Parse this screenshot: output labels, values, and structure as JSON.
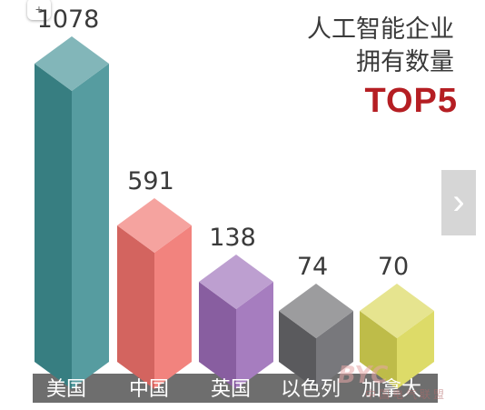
{
  "chart_data": {
    "type": "bar",
    "title": "人工智能企业拥有数量",
    "title_lines": [
      "人工智能企业",
      "拥有数量"
    ],
    "highlight": "TOP5",
    "categories": [
      "美国",
      "中国",
      "英国",
      "以色列",
      "加拿大"
    ],
    "values": [
      1078,
      591,
      138,
      74,
      70
    ],
    "value_labels": [
      "1078",
      "591",
      "138",
      "74",
      "70"
    ],
    "colors": [
      "#3f8f93",
      "#f0726c",
      "#9a6bb6",
      "#66666a",
      "#d8d653"
    ],
    "highlight_color": "#b51e23",
    "ylim": [
      0,
      1078
    ],
    "grid": false,
    "legend": "none"
  },
  "nav": {
    "next_icon": "chevron-right-icon"
  },
  "watermark": {
    "logo": "BYC",
    "text": "中国电气联盟"
  }
}
